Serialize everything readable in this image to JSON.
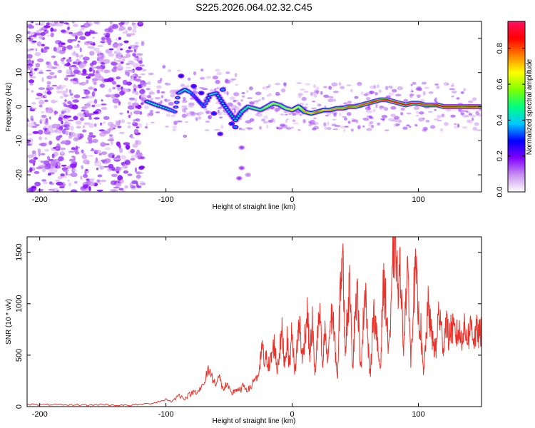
{
  "title": "S225.2026.064.02.32.C45",
  "chart_data": [
    {
      "type": "heatmap",
      "name": "spectrogram",
      "xlabel": "Height of straight line (km)",
      "ylabel": "Frequency (Hz)",
      "xlim": [
        -210,
        150
      ],
      "ylim": [
        -25,
        25
      ],
      "xticks": [
        -200,
        -100,
        0,
        100
      ],
      "xtick_labels": [
        "-200",
        "-100",
        "0",
        "100"
      ],
      "yticks": [
        -20,
        -10,
        0,
        10,
        20
      ],
      "ytick_labels": [
        "-20",
        "-10",
        "0",
        "10",
        "20"
      ],
      "colorbar": {
        "label": "Normalized spectral amplitude",
        "range": [
          0,
          0.95
        ],
        "ticks": [
          0.0,
          0.2,
          0.4,
          0.6,
          0.8
        ],
        "tick_labels": [
          "0.0",
          "0.2",
          "0.4",
          "0.6",
          "0.8"
        ],
        "colors": [
          "#ffffff",
          "#c890f0",
          "#8000ff",
          "#0000ff",
          "#00c8ff",
          "#00ff80",
          "#80ff00",
          "#ffff00",
          "#ff8000",
          "#ff0000",
          "#ff1060"
        ]
      },
      "ridge": [
        {
          "x": -115,
          "y": 1.5,
          "a": 0.45
        },
        {
          "x": -108,
          "y": 0.5,
          "a": 0.5
        },
        {
          "x": -100,
          "y": -0.5,
          "a": 0.45
        },
        {
          "x": -93,
          "y": -1.5,
          "a": 0.35
        },
        {
          "x": -90,
          "y": 4,
          "a": 0.4
        },
        {
          "x": -85,
          "y": 5,
          "a": 0.45
        },
        {
          "x": -80,
          "y": 4,
          "a": 0.35
        },
        {
          "x": -75,
          "y": 2,
          "a": 0.3
        },
        {
          "x": -70,
          "y": 0,
          "a": 0.35
        },
        {
          "x": -65,
          "y": 3.5,
          "a": 0.45
        },
        {
          "x": -60,
          "y": 4,
          "a": 0.4
        },
        {
          "x": -55,
          "y": 1,
          "a": 0.45
        },
        {
          "x": -50,
          "y": -1.5,
          "a": 0.4
        },
        {
          "x": -45,
          "y": -4,
          "a": 0.45
        },
        {
          "x": -40,
          "y": -1.5,
          "a": 0.5
        },
        {
          "x": -35,
          "y": 0,
          "a": 0.5
        },
        {
          "x": -30,
          "y": -0.5,
          "a": 0.55
        },
        {
          "x": -25,
          "y": -1,
          "a": 0.5
        },
        {
          "x": -20,
          "y": 0,
          "a": 0.6
        },
        {
          "x": -15,
          "y": 1,
          "a": 0.6
        },
        {
          "x": -10,
          "y": 0.5,
          "a": 0.55
        },
        {
          "x": -5,
          "y": -0.5,
          "a": 0.6
        },
        {
          "x": 0,
          "y": -1,
          "a": 0.65
        },
        {
          "x": 5,
          "y": 0,
          "a": 0.65
        },
        {
          "x": 10,
          "y": -1.5,
          "a": 0.75
        },
        {
          "x": 15,
          "y": -2,
          "a": 0.7
        },
        {
          "x": 20,
          "y": -1.5,
          "a": 0.8
        },
        {
          "x": 25,
          "y": -1,
          "a": 0.7
        },
        {
          "x": 30,
          "y": -1,
          "a": 0.75
        },
        {
          "x": 35,
          "y": -0.5,
          "a": 0.75
        },
        {
          "x": 40,
          "y": -0.5,
          "a": 0.75
        },
        {
          "x": 45,
          "y": 0,
          "a": 0.8
        },
        {
          "x": 50,
          "y": 0,
          "a": 0.75
        },
        {
          "x": 55,
          "y": 0.5,
          "a": 0.8
        },
        {
          "x": 60,
          "y": 1,
          "a": 0.8
        },
        {
          "x": 65,
          "y": 1.5,
          "a": 0.85
        },
        {
          "x": 70,
          "y": 2,
          "a": 0.8
        },
        {
          "x": 75,
          "y": 2,
          "a": 0.85
        },
        {
          "x": 80,
          "y": 1.5,
          "a": 0.9
        },
        {
          "x": 85,
          "y": 1,
          "a": 0.85
        },
        {
          "x": 90,
          "y": 0.5,
          "a": 0.9
        },
        {
          "x": 95,
          "y": 1,
          "a": 0.85
        },
        {
          "x": 100,
          "y": 1,
          "a": 0.85
        },
        {
          "x": 105,
          "y": 0.5,
          "a": 0.8
        },
        {
          "x": 110,
          "y": 0.5,
          "a": 0.8
        },
        {
          "x": 115,
          "y": 0.5,
          "a": 0.85
        },
        {
          "x": 120,
          "y": 0,
          "a": 0.85
        },
        {
          "x": 125,
          "y": 0,
          "a": 0.85
        },
        {
          "x": 130,
          "y": 0,
          "a": 0.85
        },
        {
          "x": 135,
          "y": 0,
          "a": 0.8
        },
        {
          "x": 140,
          "y": 0,
          "a": 0.85
        },
        {
          "x": 145,
          "y": 0,
          "a": 0.85
        },
        {
          "x": 150,
          "y": 0,
          "a": 0.8
        }
      ],
      "blobs": [
        {
          "x": -88,
          "y": 9,
          "a": 0.3
        },
        {
          "x": -78,
          "y": 6,
          "a": 0.3
        },
        {
          "x": -62,
          "y": -2,
          "a": 0.3
        },
        {
          "x": -57,
          "y": -8,
          "a": 0.25
        },
        {
          "x": -48,
          "y": -5,
          "a": 0.3
        },
        {
          "x": -40,
          "y": -12,
          "a": 0.15
        },
        {
          "x": -40,
          "y": -18,
          "a": 0.15
        },
        {
          "x": -42,
          "y": -21,
          "a": 0.15
        },
        {
          "x": -35,
          "y": -20,
          "a": 0.1
        },
        {
          "x": -45,
          "y": -6,
          "a": 0.35
        },
        {
          "x": -55,
          "y": 5,
          "a": 0.35
        },
        {
          "x": -72,
          "y": 4,
          "a": 0.3
        }
      ]
    },
    {
      "type": "line",
      "name": "snr",
      "xlabel": "Height of straight line (km)",
      "ylabel": "SNR (10 * v/v)",
      "xlim": [
        -210,
        150
      ],
      "ylim": [
        0,
        1650
      ],
      "xticks": [
        -200,
        -100,
        0,
        100
      ],
      "xtick_labels": [
        "-200",
        "-100",
        "0",
        "100"
      ],
      "yticks": [
        0,
        500,
        1000,
        1500
      ],
      "ytick_labels": [
        "0",
        "500",
        "1000",
        "1500"
      ],
      "color": "#e8322a",
      "x": [
        -210,
        -200,
        -190,
        -180,
        -170,
        -160,
        -150,
        -140,
        -130,
        -120,
        -110,
        -100,
        -95,
        -90,
        -85,
        -80,
        -75,
        -70,
        -66,
        -62,
        -58,
        -55,
        -52,
        -48,
        -45,
        -42,
        -38,
        -34,
        -30,
        -26,
        -24,
        -22,
        -20,
        -18,
        -16,
        -14,
        -12,
        -10,
        -8,
        -6,
        -4,
        -2,
        0,
        2,
        4,
        6,
        8,
        10,
        12,
        14,
        16,
        18,
        20,
        22,
        24,
        26,
        28,
        30,
        32,
        34,
        36,
        38,
        40,
        42,
        44,
        46,
        48,
        50,
        52,
        54,
        56,
        58,
        60,
        62,
        64,
        66,
        68,
        70,
        72,
        74,
        76,
        78,
        80,
        82,
        84,
        86,
        88,
        90,
        92,
        94,
        96,
        98,
        100,
        102,
        104,
        106,
        108,
        110,
        112,
        114,
        116,
        118,
        120,
        122,
        124,
        126,
        128,
        130,
        132,
        134,
        136,
        138,
        140,
        142,
        144,
        146,
        148,
        150
      ],
      "values": [
        25,
        15,
        20,
        12,
        18,
        15,
        20,
        14,
        12,
        20,
        35,
        70,
        50,
        110,
        80,
        130,
        160,
        200,
        380,
        230,
        290,
        170,
        210,
        120,
        170,
        150,
        200,
        160,
        270,
        310,
        600,
        420,
        480,
        380,
        520,
        610,
        360,
        540,
        720,
        430,
        640,
        400,
        780,
        290,
        620,
        830,
        440,
        690,
        920,
        500,
        830,
        290,
        690,
        900,
        340,
        750,
        430,
        780,
        910,
        590,
        240,
        1150,
        1480,
        550,
        940,
        1200,
        360,
        980,
        1080,
        330,
        740,
        1230,
        610,
        260,
        920,
        810,
        520,
        380,
        1180,
        1050,
        600,
        760,
        1480,
        1640,
        1070,
        1380,
        540,
        1050,
        1270,
        420,
        1060,
        1310,
        880,
        750,
        280,
        660,
        1010,
        720,
        620,
        540,
        940,
        760,
        570,
        860,
        650,
        770,
        730,
        690,
        730,
        660,
        760,
        700,
        690,
        820,
        640,
        740,
        700,
        720
      ]
    }
  ]
}
